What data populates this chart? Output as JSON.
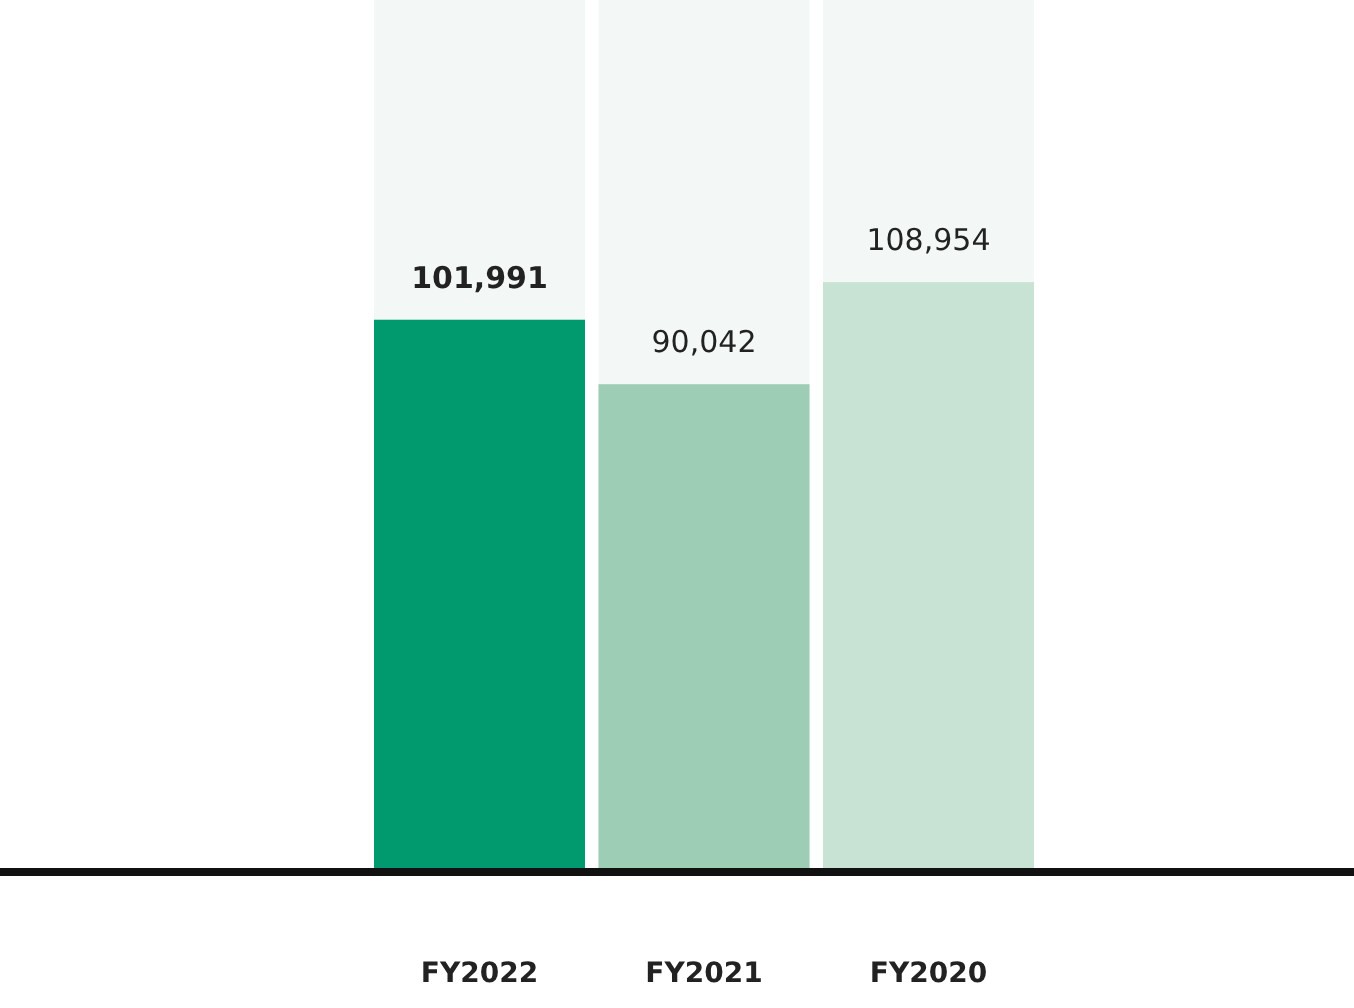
{
  "chart_data": {
    "type": "bar",
    "categories": [
      "FY2022",
      "FY2021",
      "FY2020"
    ],
    "values": [
      101991,
      90042,
      108954
    ],
    "colors": [
      "#009a6e",
      "#9dcdb4",
      "#c8e2d4"
    ],
    "value_labels": [
      "101,991",
      "90,042",
      "108,954"
    ]
  }
}
